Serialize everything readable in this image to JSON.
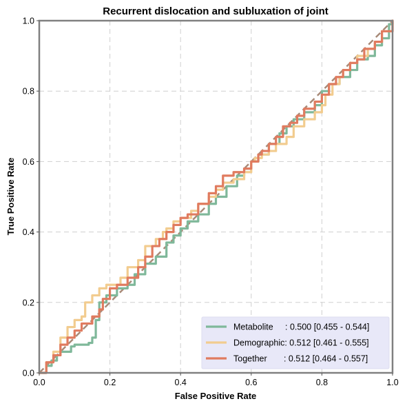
{
  "chart_data": {
    "type": "line",
    "title": "Recurrent dislocation and subluxation of joint",
    "xlabel": "False Positive Rate",
    "ylabel": "True Positive Rate",
    "xlim": [
      0,
      1
    ],
    "ylim": [
      0,
      1
    ],
    "xticks": [
      "0.0",
      "0.2",
      "0.4",
      "0.6",
      "0.8",
      "1.0"
    ],
    "yticks": [
      "0.0",
      "0.2",
      "0.4",
      "0.6",
      "0.8",
      "1.0"
    ],
    "grid": true,
    "legend_position": "bottom-right",
    "legend_background": "#e8e8f8",
    "reference_line": {
      "name": "chance",
      "style": "dashed",
      "color": "#a88a78",
      "x": [
        0,
        1
      ],
      "y": [
        0,
        1
      ]
    },
    "series": [
      {
        "name": "Metabolite",
        "legend_label": "Metabolite     : 0.500 [0.455 - 0.544]",
        "color": "#7fb89a",
        "x": [
          0,
          0.02,
          0.035,
          0.05,
          0.06,
          0.09,
          0.1,
          0.13,
          0.14,
          0.15,
          0.16,
          0.17,
          0.19,
          0.22,
          0.25,
          0.27,
          0.3,
          0.33,
          0.36,
          0.38,
          0.4,
          0.42,
          0.45,
          0.48,
          0.5,
          0.53,
          0.56,
          0.58,
          0.6,
          0.62,
          0.65,
          0.68,
          0.7,
          0.72,
          0.75,
          0.78,
          0.8,
          0.8,
          0.82,
          0.85,
          0.88,
          0.9,
          0.93,
          0.95,
          0.97,
          0.99,
          1.0
        ],
        "y": [
          0,
          0.02,
          0.035,
          0.05,
          0.06,
          0.075,
          0.08,
          0.08,
          0.085,
          0.1,
          0.15,
          0.2,
          0.22,
          0.24,
          0.25,
          0.28,
          0.31,
          0.33,
          0.37,
          0.39,
          0.41,
          0.43,
          0.45,
          0.48,
          0.5,
          0.53,
          0.56,
          0.58,
          0.6,
          0.62,
          0.65,
          0.68,
          0.7,
          0.72,
          0.74,
          0.76,
          0.77,
          0.8,
          0.82,
          0.84,
          0.86,
          0.89,
          0.9,
          0.93,
          0.95,
          0.99,
          1.0
        ]
      },
      {
        "name": "Demographic",
        "legend_label": "Demographic: 0.512 [0.461 - 0.555]",
        "color": "#f2cc8f",
        "x": [
          0,
          0.02,
          0.04,
          0.06,
          0.08,
          0.1,
          0.12,
          0.13,
          0.15,
          0.17,
          0.19,
          0.2,
          0.23,
          0.25,
          0.28,
          0.3,
          0.33,
          0.35,
          0.36,
          0.38,
          0.4,
          0.43,
          0.45,
          0.48,
          0.5,
          0.52,
          0.55,
          0.58,
          0.6,
          0.61,
          0.63,
          0.65,
          0.67,
          0.7,
          0.72,
          0.75,
          0.78,
          0.8,
          0.81,
          0.83,
          0.85,
          0.86,
          0.88,
          0.9,
          0.93,
          0.95,
          0.97,
          1.0
        ],
        "y": [
          0,
          0.03,
          0.06,
          0.1,
          0.13,
          0.15,
          0.16,
          0.2,
          0.22,
          0.24,
          0.25,
          0.25,
          0.27,
          0.3,
          0.32,
          0.36,
          0.38,
          0.4,
          0.41,
          0.43,
          0.44,
          0.46,
          0.48,
          0.5,
          0.52,
          0.54,
          0.55,
          0.57,
          0.6,
          0.61,
          0.62,
          0.63,
          0.65,
          0.67,
          0.7,
          0.72,
          0.74,
          0.76,
          0.79,
          0.82,
          0.84,
          0.86,
          0.88,
          0.9,
          0.92,
          0.94,
          0.97,
          1.0
        ]
      },
      {
        "name": "Together",
        "legend_label": "Together       : 0.512 [0.464 - 0.557]",
        "color": "#e07b5f",
        "x": [
          0,
          0.02,
          0.04,
          0.06,
          0.08,
          0.1,
          0.12,
          0.15,
          0.17,
          0.18,
          0.2,
          0.22,
          0.25,
          0.28,
          0.3,
          0.32,
          0.34,
          0.36,
          0.38,
          0.4,
          0.42,
          0.45,
          0.48,
          0.5,
          0.52,
          0.55,
          0.58,
          0.6,
          0.62,
          0.63,
          0.65,
          0.67,
          0.69,
          0.71,
          0.73,
          0.75,
          0.78,
          0.8,
          0.82,
          0.84,
          0.86,
          0.88,
          0.9,
          0.92,
          0.95,
          0.97,
          1.0
        ],
        "y": [
          0,
          0.03,
          0.05,
          0.08,
          0.1,
          0.12,
          0.14,
          0.16,
          0.18,
          0.21,
          0.24,
          0.25,
          0.27,
          0.3,
          0.33,
          0.36,
          0.38,
          0.4,
          0.42,
          0.44,
          0.45,
          0.48,
          0.51,
          0.53,
          0.56,
          0.57,
          0.58,
          0.6,
          0.62,
          0.63,
          0.65,
          0.67,
          0.7,
          0.71,
          0.73,
          0.75,
          0.77,
          0.79,
          0.82,
          0.84,
          0.86,
          0.88,
          0.89,
          0.92,
          0.94,
          0.97,
          1.0
        ]
      }
    ]
  }
}
